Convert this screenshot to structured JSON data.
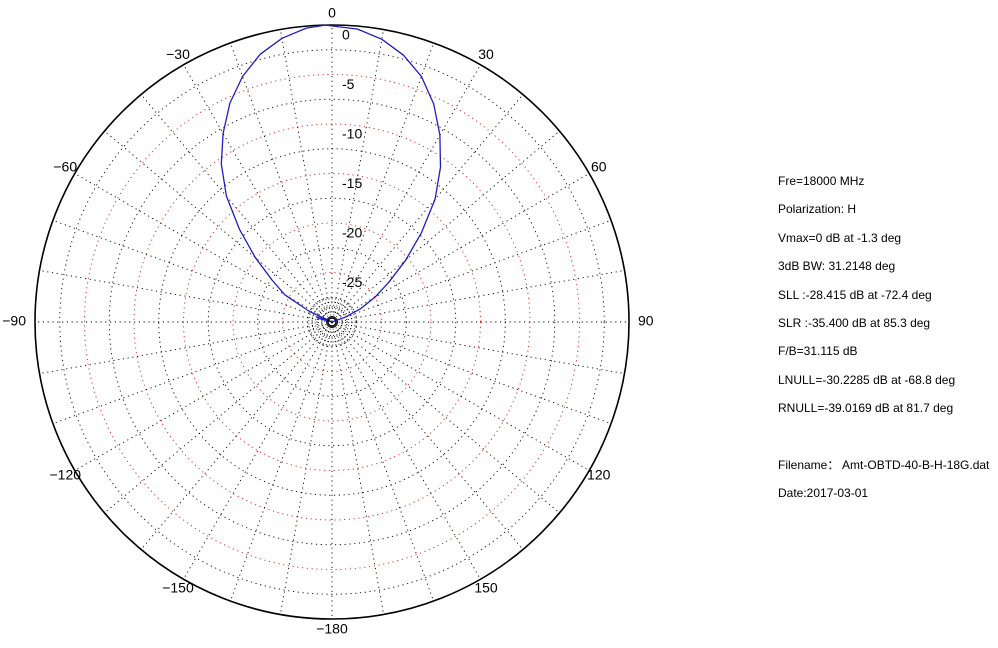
{
  "chart_data": {
    "type": "polar",
    "angle_ticks": [
      "0",
      "30",
      "60",
      "90",
      "120",
      "150",
      "−180",
      "−150",
      "−120",
      "−90",
      "−60",
      "−30"
    ],
    "radial_ticks": [
      "0",
      "-5",
      "-10",
      "-15",
      "-20",
      "-25"
    ],
    "r_range_db": [
      -30,
      0
    ],
    "grid": true,
    "series": [
      {
        "color": "#1f1fbf",
        "theta_deg": [
          -90,
          -85,
          -80,
          -75,
          -72.4,
          -70,
          -68.8,
          -65,
          -60,
          -55,
          -50,
          -45,
          -40,
          -35,
          -30,
          -25,
          -20,
          -15,
          -10,
          -5,
          -1.3,
          5,
          10,
          15,
          20,
          25,
          30,
          35,
          40,
          45,
          50,
          55,
          60,
          65,
          70,
          75,
          80,
          81.7,
          85.3,
          90
        ],
        "r_db": [
          -38,
          -34,
          -31,
          -28.6,
          -28.4,
          -29.5,
          -30.2,
          -27.5,
          -24.5,
          -22.6,
          -19.9,
          -16.8,
          -13.4,
          -10.5,
          -8.0,
          -5.6,
          -3.6,
          -2.0,
          -0.9,
          -0.2,
          0,
          -0.3,
          -1.0,
          -2.1,
          -3.6,
          -5.7,
          -8.2,
          -10.9,
          -13.8,
          -17.2,
          -20.3,
          -23.0,
          -25.0,
          -26.8,
          -28.6,
          -31.5,
          -36.5,
          -39.0,
          -35.4,
          -38
        ]
      }
    ]
  },
  "info": {
    "freq": "Fre=18000 MHz",
    "polarization": "Polarization: H",
    "vmax": "Vmax=0 dB at -1.3 deg",
    "bw": "3dB BW: 31.2148 deg",
    "sll": "SLL :-28.415 dB at  -72.4 deg",
    "slr": "SLR :-35.400 dB at  85.3 deg",
    "fb": "F/B=31.115 dB",
    "lnull": "LNULL=-30.2285 dB at -68.8 deg",
    "rnull": "RNULL=-39.0169 dB at 81.7 deg",
    "filename": "Filename： Amt-OBTD-40-B-H-18G.dat",
    "date": "Date:2017-03-01"
  }
}
